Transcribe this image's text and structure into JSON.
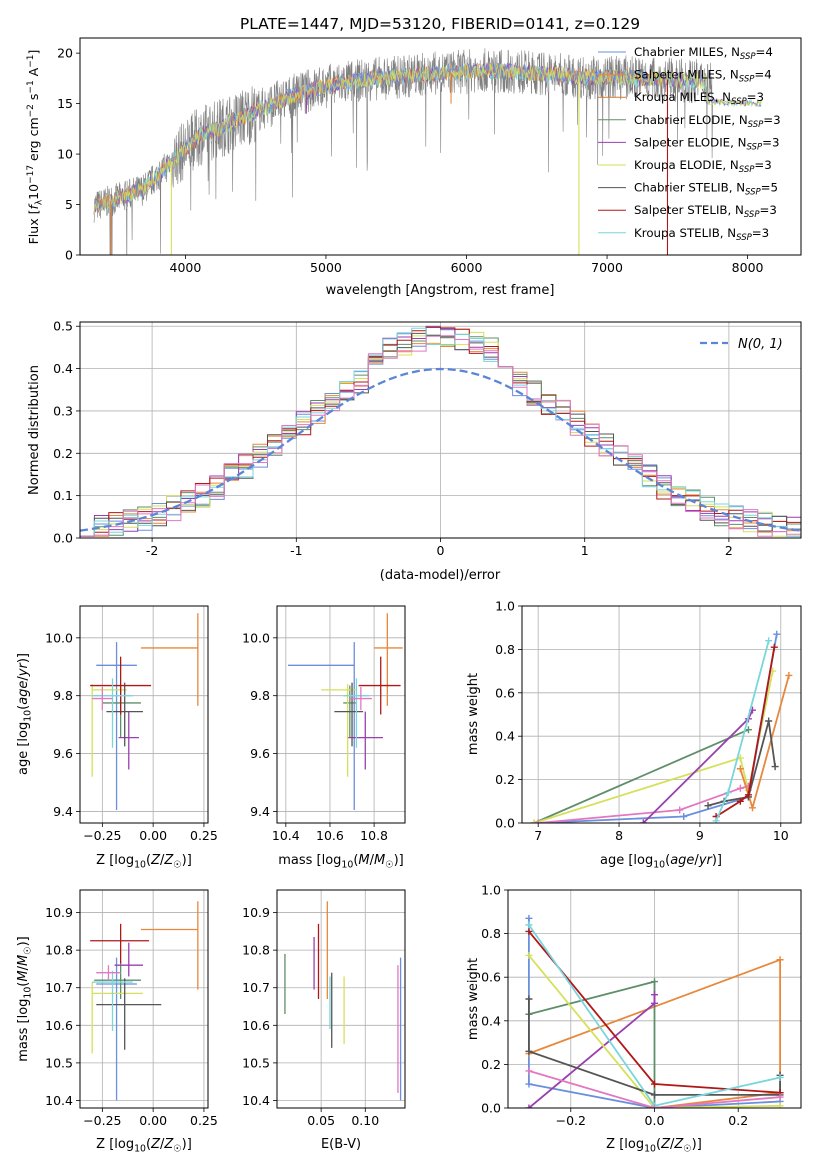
{
  "figure": {
    "title": "PLATE=1447, MJD=53120, FIBERID=0141, z=0.129"
  },
  "colors": {
    "Chabrier MILES": "#6a8fdc",
    "Salpeter MILES": "#e7883c",
    "Kroupa MILES": "#d07a2a",
    "Chabrier ELODIE": "#5f8f6a",
    "Salpeter ELODIE": "#9a3fb0",
    "Kroupa ELODIE": "#d6e05a",
    "Chabrier STELIB": "#555555",
    "Salpeter STELIB": "#b01818",
    "Kroupa STELIB": "#78d6dc",
    "pink": "#e377c2"
  },
  "chart_data": [
    {
      "id": "spectrum",
      "type": "line",
      "title": "PLATE=1447, MJD=53120, FIBERID=0141, z=0.129",
      "xlabel": "wavelength [Angstrom, rest frame]",
      "ylabel": "Flux [fλ10^-17 erg cm^-2 s^-1 A^-1]",
      "xlim": [
        3250,
        8380
      ],
      "ylim": [
        0,
        21.5
      ],
      "xticks": [
        4000,
        5000,
        6000,
        7000,
        8000
      ],
      "yticks": [
        0,
        5,
        10,
        15,
        20
      ],
      "grid": false,
      "legend_position": "top-right",
      "continuum": {
        "x": [
          3350,
          3500,
          3700,
          3900,
          4100,
          4300,
          4500,
          4700,
          4900,
          5100,
          5300,
          5500,
          5700,
          5900,
          6100,
          6300,
          6500,
          6700,
          6900,
          7100,
          7300,
          7500,
          7700,
          7900,
          8100
        ],
        "y": [
          4.8,
          5.5,
          6.5,
          9.2,
          11.8,
          12.9,
          14.2,
          15.4,
          16.4,
          17.0,
          17.4,
          17.6,
          17.9,
          18.1,
          18.3,
          18.2,
          18.0,
          17.8,
          17.6,
          17.6,
          17.5,
          17.3,
          17.2,
          17.1,
          17.0
        ]
      },
      "dips": [
        {
          "x": 3470,
          "y": 0.0,
          "series": "Salpeter MILES"
        },
        {
          "x": 3900,
          "y": 0.0,
          "series": "Kroupa ELODIE"
        },
        {
          "x": 4860,
          "y": 14.0,
          "series": "Salpeter ELODIE"
        },
        {
          "x": 5890,
          "y": 15.0,
          "series": "Salpeter MILES"
        },
        {
          "x": 6800,
          "y": 0.0,
          "series": "Kroupa ELODIE"
        },
        {
          "x": 7430,
          "y": 0.0,
          "series": "Salpeter STELIB"
        }
      ],
      "series": [
        {
          "name": "Chabrier MILES, N_SSP=4",
          "label_main": "Chabrier MILES, N",
          "label_sub": "SSP",
          "label_end": "=4"
        },
        {
          "name": "Salpeter MILES, N_SSP=4",
          "label_main": "Salpeter MILES, N",
          "label_sub": "SSP",
          "label_end": "=4"
        },
        {
          "name": "Kroupa MILES, N_SSP=3",
          "label_main": "Kroupa MILES, N",
          "label_sub": "SSP",
          "label_end": "=3"
        },
        {
          "name": "Chabrier ELODIE, N_SSP=3",
          "label_main": "Chabrier ELODIE, N",
          "label_sub": "SSP",
          "label_end": "=3"
        },
        {
          "name": "Salpeter ELODIE, N_SSP=3",
          "label_main": "Salpeter ELODIE, N",
          "label_sub": "SSP",
          "label_end": "=3"
        },
        {
          "name": "Kroupa ELODIE, N_SSP=3",
          "label_main": "Kroupa ELODIE, N",
          "label_sub": "SSP",
          "label_end": "=3"
        },
        {
          "name": "Chabrier STELIB, N_SSP=5",
          "label_main": "Chabrier STELIB, N",
          "label_sub": "SSP",
          "label_end": "=5"
        },
        {
          "name": "Salpeter STELIB, N_SSP=3",
          "label_main": "Salpeter STELIB, N",
          "label_sub": "SSP",
          "label_end": "=3"
        },
        {
          "name": "Kroupa STELIB, N_SSP=3",
          "label_main": "Kroupa STELIB, N",
          "label_sub": "SSP",
          "label_end": "=3"
        }
      ]
    },
    {
      "id": "residuals",
      "type": "histogram",
      "xlabel": "(data-model)/error",
      "ylabel": "Normed distribution",
      "xlim": [
        -2.5,
        2.5
      ],
      "ylim": [
        0,
        0.51
      ],
      "xticks": [
        -2,
        -1,
        0,
        1,
        2
      ],
      "yticks": [
        0.0,
        0.1,
        0.2,
        0.3,
        0.4,
        0.5
      ],
      "grid": true,
      "legend": "N(0, 1)",
      "legend_position": "top-right",
      "bin_width": 0.1,
      "gaussian": {
        "mean": 0,
        "sigma": 1
      }
    },
    {
      "id": "age-vs-Z",
      "type": "errorbar",
      "xlabel": "Z [log10(Z/Z☉)]",
      "ylabel": "age  [log10(age/yr)]",
      "xlim": [
        -0.36,
        0.27
      ],
      "ylim": [
        9.36,
        10.11
      ],
      "xticks": [
        -0.25,
        0.0,
        0.25
      ],
      "xticklabels": [
        "−0.25",
        "0.00",
        "0.25"
      ],
      "yticks": [
        9.4,
        9.6,
        9.8,
        10.0
      ],
      "grid": true,
      "points": [
        {
          "series": "Chabrier MILES",
          "x": -0.18,
          "xerr": [
            0.1,
            0.1
          ],
          "y": 9.905,
          "yerr": [
            0.5,
            0.08
          ]
        },
        {
          "series": "Salpeter MILES",
          "x": 0.22,
          "xerr": [
            0.28,
            0.0
          ],
          "y": 9.965,
          "yerr": [
            0.2,
            0.12
          ]
        },
        {
          "series": "Chabrier ELODIE",
          "x": -0.16,
          "xerr": [
            0.09,
            0.1
          ],
          "y": 9.775,
          "yerr": [
            0.12,
            0.06
          ]
        },
        {
          "series": "Salpeter ELODIE",
          "x": -0.12,
          "xerr": [
            0.05,
            0.05
          ],
          "y": 9.655,
          "yerr": [
            0.11,
            0.09
          ]
        },
        {
          "series": "Kroupa ELODIE",
          "x": -0.3,
          "xerr": [
            0.0,
            0.17
          ],
          "y": 9.82,
          "yerr": [
            0.3,
            0.02
          ]
        },
        {
          "series": "Chabrier STELIB",
          "x": -0.14,
          "xerr": [
            0.09,
            0.09
          ],
          "y": 9.745,
          "yerr": [
            0.12,
            0.1
          ]
        },
        {
          "series": "Salpeter STELIB",
          "x": -0.16,
          "xerr": [
            0.15,
            0.15
          ],
          "y": 9.835,
          "yerr": [
            0.1,
            0.1
          ]
        },
        {
          "series": "Kroupa STELIB",
          "x": -0.2,
          "xerr": [
            0.1,
            0.1
          ],
          "y": 9.8,
          "yerr": [
            0.18,
            0.06
          ]
        },
        {
          "series": "pink",
          "x": -0.25,
          "xerr": [
            0.05,
            0.05
          ],
          "y": 9.79,
          "yerr": [
            0.04,
            0.04
          ]
        }
      ]
    },
    {
      "id": "age-vs-mass",
      "type": "errorbar",
      "xlabel": "mass [log10(M/M☉)]",
      "ylabel": "",
      "xlim": [
        10.36,
        10.94
      ],
      "ylim": [
        9.36,
        10.11
      ],
      "xticks": [
        10.4,
        10.6,
        10.8
      ],
      "yticks": [
        9.4,
        9.6,
        9.8,
        10.0
      ],
      "grid": true,
      "points": [
        {
          "series": "Chabrier MILES",
          "x": 10.71,
          "xerr": [
            0.3,
            0.0
          ],
          "y": 9.905,
          "yerr": [
            0.5,
            0.08
          ]
        },
        {
          "series": "Salpeter MILES",
          "x": 10.86,
          "xerr": [
            0.06,
            0.07
          ],
          "y": 9.965,
          "yerr": [
            0.2,
            0.12
          ]
        },
        {
          "series": "Chabrier ELODIE",
          "x": 10.69,
          "xerr": [
            0.03,
            0.03
          ],
          "y": 9.775,
          "yerr": [
            0.12,
            0.06
          ]
        },
        {
          "series": "Salpeter ELODIE",
          "x": 10.76,
          "xerr": [
            0.08,
            0.08
          ],
          "y": 9.655,
          "yerr": [
            0.11,
            0.09
          ]
        },
        {
          "series": "Kroupa ELODIE",
          "x": 10.68,
          "xerr": [
            0.12,
            0.04
          ],
          "y": 9.82,
          "yerr": [
            0.3,
            0.02
          ]
        },
        {
          "series": "Chabrier STELIB",
          "x": 10.7,
          "xerr": [
            0.08,
            0.05
          ],
          "y": 9.745,
          "yerr": [
            0.12,
            0.1
          ]
        },
        {
          "series": "Salpeter STELIB",
          "x": 10.83,
          "xerr": [
            0.1,
            0.09
          ],
          "y": 9.835,
          "yerr": [
            0.1,
            0.1
          ]
        },
        {
          "series": "Kroupa STELIB",
          "x": 10.72,
          "xerr": [
            0.06,
            0.06
          ],
          "y": 9.8,
          "yerr": [
            0.18,
            0.06
          ]
        },
        {
          "series": "pink",
          "x": 10.74,
          "xerr": [
            0.05,
            0.05
          ],
          "y": 9.79,
          "yerr": [
            0.04,
            0.04
          ]
        }
      ]
    },
    {
      "id": "mass-weight-vs-age",
      "type": "line",
      "xlabel": "age  [log10(age/yr)]",
      "ylabel": "mass weight",
      "xlim": [
        6.8,
        10.25
      ],
      "ylim": [
        0,
        1.0
      ],
      "xticks": [
        7,
        8,
        9,
        10
      ],
      "yticks": [
        0.0,
        0.2,
        0.4,
        0.6,
        0.8,
        1.0
      ],
      "grid": true,
      "series": [
        {
          "name": "Chabrier ELODIE",
          "x": [
            6.95,
            9.6
          ],
          "y": [
            0.0,
            0.43
          ]
        },
        {
          "name": "Kroupa ELODIE",
          "x": [
            6.95,
            9.5,
            9.6,
            9.9
          ],
          "y": [
            0.0,
            0.3,
            0.15,
            0.7
          ]
        },
        {
          "name": "Chabrier MILES",
          "x": [
            7.0,
            8.8,
            9.6,
            9.95
          ],
          "y": [
            0.0,
            0.03,
            0.12,
            0.87
          ]
        },
        {
          "name": "pink",
          "x": [
            7.0,
            8.75,
            9.5,
            9.6
          ],
          "y": [
            0.0,
            0.06,
            0.16,
            0.17
          ]
        },
        {
          "name": "Salpeter ELODIE",
          "x": [
            8.3,
            9.6,
            9.65
          ],
          "y": [
            0.0,
            0.48,
            0.52
          ]
        },
        {
          "name": "Salpeter MILES",
          "x": [
            9.5,
            9.65,
            10.1
          ],
          "y": [
            0.25,
            0.07,
            0.68
          ]
        },
        {
          "name": "Chabrier STELIB",
          "x": [
            9.1,
            9.3,
            9.6,
            9.85,
            9.93
          ],
          "y": [
            0.08,
            0.1,
            0.12,
            0.47,
            0.26
          ]
        },
        {
          "name": "Salpeter STELIB",
          "x": [
            9.2,
            9.5,
            9.6,
            9.92
          ],
          "y": [
            0.03,
            0.1,
            0.13,
            0.81
          ]
        },
        {
          "name": "Kroupa STELIB",
          "x": [
            9.2,
            9.35,
            9.85
          ],
          "y": [
            0.01,
            0.14,
            0.84
          ]
        }
      ]
    },
    {
      "id": "mass-vs-Z",
      "type": "errorbar",
      "xlabel": "Z [log10(Z/Z☉)]",
      "ylabel": "mass [log10(M/M☉)]",
      "xlim": [
        -0.36,
        0.27
      ],
      "ylim": [
        10.38,
        10.96
      ],
      "xticks": [
        -0.25,
        0.0,
        0.25
      ],
      "xticklabels": [
        "−0.25",
        "0.00",
        "0.25"
      ],
      "yticks": [
        10.4,
        10.5,
        10.6,
        10.7,
        10.8,
        10.9
      ],
      "grid": true,
      "points": [
        {
          "series": "Chabrier MILES",
          "x": -0.18,
          "xerr": [
            0.1,
            0.1
          ],
          "y": 10.71,
          "yerr": [
            0.31,
            0.07
          ]
        },
        {
          "series": "Salpeter MILES",
          "x": 0.22,
          "xerr": [
            0.28,
            0.0
          ],
          "y": 10.855,
          "yerr": [
            0.16,
            0.075
          ]
        },
        {
          "series": "Chabrier ELODIE",
          "x": -0.16,
          "xerr": [
            0.13,
            0.1
          ],
          "y": 10.72,
          "yerr": [
            0.05,
            0.05
          ]
        },
        {
          "series": "Salpeter ELODIE",
          "x": -0.12,
          "xerr": [
            0.07,
            0.07
          ],
          "y": 10.76,
          "yerr": [
            0.03,
            0.06
          ]
        },
        {
          "series": "Kroupa ELODIE",
          "x": -0.3,
          "xerr": [
            0.0,
            0.25
          ],
          "y": 10.685,
          "yerr": [
            0.16,
            0.03
          ]
        },
        {
          "series": "Chabrier STELIB",
          "x": -0.14,
          "xerr": [
            0.14,
            0.18
          ],
          "y": 10.655,
          "yerr": [
            0.12,
            0.07
          ]
        },
        {
          "series": "Salpeter STELIB",
          "x": -0.16,
          "xerr": [
            0.15,
            0.14
          ],
          "y": 10.825,
          "yerr": [
            0.06,
            0.045
          ]
        },
        {
          "series": "Kroupa STELIB",
          "x": -0.2,
          "xerr": [
            0.1,
            0.1
          ],
          "y": 10.715,
          "yerr": [
            0.13,
            0.03
          ]
        },
        {
          "series": "pink",
          "x": -0.22,
          "xerr": [
            0.06,
            0.06
          ],
          "y": 10.74,
          "yerr": [
            0.02,
            0.02
          ]
        }
      ]
    },
    {
      "id": "mass-vs-EBV",
      "type": "errorbar",
      "xlabel": "E(B-V)",
      "ylabel": "",
      "xlim": [
        0.0,
        0.145
      ],
      "ylim": [
        10.38,
        10.96
      ],
      "xticks": [
        0.05,
        0.1
      ],
      "xticklabels": [
        "0.05",
        "0.10"
      ],
      "yticks": [
        10.4,
        10.5,
        10.6,
        10.7,
        10.8,
        10.9
      ],
      "grid": true,
      "points": [
        {
          "series": "Chabrier MILES",
          "x": 0.14,
          "y": 10.59,
          "yerr": [
            0.19,
            0.19
          ]
        },
        {
          "series": "Salpeter MILES",
          "x": 0.057,
          "y": 10.8,
          "yerr": [
            0.13,
            0.13
          ]
        },
        {
          "series": "Chabrier ELODIE",
          "x": 0.009,
          "y": 10.71,
          "yerr": [
            0.08,
            0.08
          ]
        },
        {
          "series": "Salpeter ELODIE",
          "x": 0.042,
          "y": 10.765,
          "yerr": [
            0.07,
            0.07
          ]
        },
        {
          "series": "Kroupa ELODIE",
          "x": 0.076,
          "y": 10.64,
          "yerr": [
            0.09,
            0.09
          ]
        },
        {
          "series": "Chabrier STELIB",
          "x": 0.062,
          "y": 10.64,
          "yerr": [
            0.1,
            0.1
          ]
        },
        {
          "series": "Salpeter STELIB",
          "x": 0.047,
          "y": 10.77,
          "yerr": [
            0.1,
            0.1
          ]
        },
        {
          "series": "Kroupa STELIB",
          "x": 0.06,
          "y": 10.66,
          "yerr": [
            0.07,
            0.07
          ]
        },
        {
          "series": "pink",
          "x": 0.137,
          "y": 10.59,
          "yerr": [
            0.17,
            0.17
          ]
        }
      ]
    },
    {
      "id": "mass-weight-vs-Z",
      "type": "line",
      "xlabel": "Z [log10(Z/Z☉)]",
      "ylabel": "mass weight",
      "xlim": [
        -0.35,
        0.35
      ],
      "ylim": [
        0,
        1.0
      ],
      "xticks": [
        -0.2,
        0.0,
        0.2
      ],
      "xticklabels": [
        "−0.2",
        "0.0",
        "0.2"
      ],
      "yticks": [
        0.0,
        0.2,
        0.4,
        0.6,
        0.8,
        1.0
      ],
      "grid": true,
      "series": [
        {
          "name": "Chabrier MILES",
          "x": [
            -0.3,
            -0.3,
            0.0,
            0.3
          ],
          "y": [
            0.87,
            0.11,
            0.0,
            0.03
          ]
        },
        {
          "name": "Salpeter MILES",
          "x": [
            -0.3,
            0.3,
            0.3,
            0.0
          ],
          "y": [
            0.25,
            0.68,
            0.07,
            0.0
          ]
        },
        {
          "name": "Chabrier ELODIE",
          "x": [
            -0.3,
            0.0,
            0.0
          ],
          "y": [
            0.43,
            0.58,
            0.0
          ]
        },
        {
          "name": "Salpeter ELODIE",
          "x": [
            -0.3,
            0.0,
            0.0
          ],
          "y": [
            0.0,
            0.48,
            0.52
          ]
        },
        {
          "name": "Kroupa ELODIE",
          "x": [
            -0.3,
            0.0,
            0.3
          ],
          "y": [
            0.7,
            0.0,
            0.01
          ]
        },
        {
          "name": "Chabrier STELIB",
          "x": [
            -0.3,
            -0.3,
            0.0,
            0.3,
            0.3
          ],
          "y": [
            0.5,
            0.26,
            0.06,
            0.06,
            0.15
          ]
        },
        {
          "name": "Salpeter STELIB",
          "x": [
            -0.3,
            0.0,
            0.3
          ],
          "y": [
            0.81,
            0.11,
            0.07
          ]
        },
        {
          "name": "Kroupa STELIB",
          "x": [
            -0.3,
            0.0,
            0.3
          ],
          "y": [
            0.84,
            0.01,
            0.14
          ]
        },
        {
          "name": "pink",
          "x": [
            -0.3,
            0.0,
            0.3
          ],
          "y": [
            0.17,
            0.0,
            0.05
          ]
        }
      ]
    }
  ]
}
